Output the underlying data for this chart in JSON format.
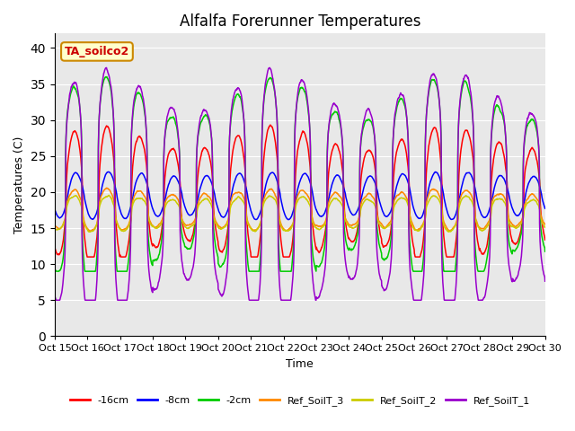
{
  "title": "Alfalfa Forerunner Temperatures",
  "xlabel": "Time",
  "ylabel": "Temperatures (C)",
  "ylim": [
    0,
    42
  ],
  "yticks": [
    0,
    5,
    10,
    15,
    20,
    25,
    30,
    35,
    40
  ],
  "background_color": "#e8e8e8",
  "fig_background": "#ffffff",
  "legend_label": "TA_soilco2",
  "colors": {
    "-16cm": "#ff0000",
    "-8cm": "#0000ff",
    "-2cm": "#00cc00",
    "Ref_SoilT_3": "#ff8800",
    "Ref_SoilT_2": "#cccc00",
    "Ref_SoilT_1": "#9900cc"
  },
  "xtick_labels": [
    "Oct 15",
    "Oct 16",
    "Oct 17",
    "Oct 18",
    "Oct 19",
    "Oct 20",
    "Oct 21",
    "Oct 22",
    "Oct 23",
    "Oct 24",
    "Oct 25",
    "Oct 26",
    "Oct 27",
    "Oct 28",
    "Oct 29",
    "Oct 30"
  ],
  "n_days": 15,
  "ppd": 144
}
